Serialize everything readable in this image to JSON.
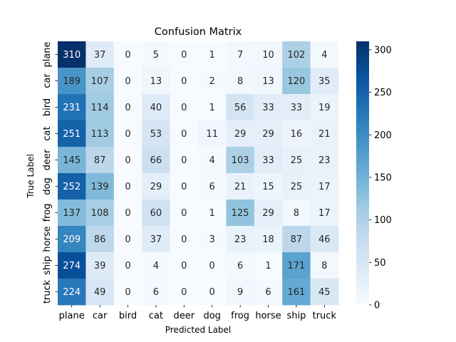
{
  "chart_data": {
    "type": "heatmap",
    "title": "Confusion Matrix",
    "xlabel": "Predicted Label",
    "ylabel": "True Label",
    "x_categories": [
      "plane",
      "car",
      "bird",
      "cat",
      "deer",
      "dog",
      "frog",
      "horse",
      "ship",
      "truck"
    ],
    "y_categories": [
      "plane",
      "car",
      "bird",
      "cat",
      "deer",
      "dog",
      "frog",
      "horse",
      "ship",
      "truck"
    ],
    "values": [
      [
        310,
        37,
        0,
        5,
        0,
        1,
        7,
        10,
        102,
        4
      ],
      [
        189,
        107,
        0,
        13,
        0,
        2,
        8,
        13,
        120,
        35
      ],
      [
        231,
        114,
        0,
        40,
        0,
        1,
        56,
        33,
        33,
        19
      ],
      [
        251,
        113,
        0,
        53,
        0,
        11,
        29,
        29,
        16,
        21
      ],
      [
        145,
        87,
        0,
        66,
        0,
        4,
        103,
        33,
        25,
        23
      ],
      [
        252,
        139,
        0,
        29,
        0,
        6,
        21,
        15,
        25,
        17
      ],
      [
        137,
        108,
        0,
        60,
        0,
        1,
        125,
        29,
        8,
        17
      ],
      [
        209,
        86,
        0,
        37,
        0,
        3,
        23,
        18,
        87,
        46
      ],
      [
        274,
        39,
        0,
        4,
        0,
        0,
        6,
        1,
        171,
        8
      ],
      [
        224,
        49,
        0,
        6,
        0,
        0,
        9,
        6,
        161,
        45
      ]
    ],
    "colorbar": {
      "min": 0,
      "max": 310,
      "ticks": [
        0,
        50,
        100,
        150,
        200,
        250,
        300
      ]
    },
    "colormap": "Blues",
    "annotated": true,
    "grid": false
  }
}
